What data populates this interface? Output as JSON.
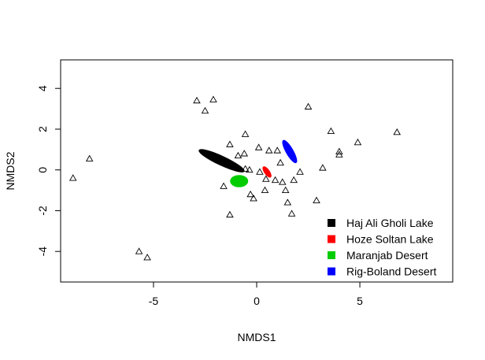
{
  "chart_data": {
    "type": "scatter",
    "title": "",
    "xlabel": "NMDS1",
    "ylabel": "NMDS2",
    "xlim": [
      -9.5,
      9.5
    ],
    "ylim": [
      -5.5,
      5.4
    ],
    "xticks": [
      -5,
      0,
      5
    ],
    "xtick_labels": [
      "-5",
      "0",
      "5"
    ],
    "yticks": [
      -4,
      -2,
      0,
      2,
      4
    ],
    "ytick_labels": [
      "-4",
      "-2",
      "0",
      "2",
      "4"
    ],
    "grid": false,
    "legend_position": "bottom-right",
    "point_marker": "open-triangle",
    "points": [
      [
        -8.9,
        -0.4
      ],
      [
        -8.1,
        0.55
      ],
      [
        -5.7,
        -4.0
      ],
      [
        -5.3,
        -4.3
      ],
      [
        -2.9,
        3.4
      ],
      [
        -2.5,
        2.9
      ],
      [
        -2.1,
        3.45
      ],
      [
        -1.6,
        -0.8
      ],
      [
        -1.3,
        1.25
      ],
      [
        -1.3,
        -2.2
      ],
      [
        -0.9,
        0.7
      ],
      [
        -0.6,
        0.8
      ],
      [
        -0.55,
        1.75
      ],
      [
        -0.55,
        0.05
      ],
      [
        -0.35,
        0.0
      ],
      [
        -0.3,
        -1.2
      ],
      [
        -0.15,
        -1.4
      ],
      [
        0.1,
        1.1
      ],
      [
        0.15,
        -0.1
      ],
      [
        0.4,
        -1.0
      ],
      [
        0.45,
        -0.45
      ],
      [
        0.6,
        0.95
      ],
      [
        0.9,
        -0.5
      ],
      [
        1.0,
        0.95
      ],
      [
        1.15,
        0.35
      ],
      [
        1.25,
        -0.6
      ],
      [
        1.4,
        -1.0
      ],
      [
        1.5,
        -1.6
      ],
      [
        1.7,
        -2.15
      ],
      [
        1.8,
        -0.5
      ],
      [
        2.1,
        -0.1
      ],
      [
        2.5,
        3.1
      ],
      [
        2.9,
        -1.5
      ],
      [
        3.2,
        0.1
      ],
      [
        3.6,
        1.9
      ],
      [
        4.0,
        0.9
      ],
      [
        4.0,
        0.75
      ],
      [
        4.9,
        1.35
      ],
      [
        6.8,
        1.85
      ]
    ],
    "series": [
      {
        "name": "Haj Ali Gholi Lake",
        "color": "#000000",
        "ellipse": {
          "center": [
            -1.7,
            0.45
          ],
          "rx": 1.2,
          "ry": 0.22,
          "angle_deg": -25
        }
      },
      {
        "name": "Hoze Soltan Lake",
        "color": "#ff0000",
        "ellipse": {
          "center": [
            0.5,
            -0.1
          ],
          "rx": 0.3,
          "ry": 0.12,
          "angle_deg": -55
        }
      },
      {
        "name": "Maranjab Desert",
        "color": "#00cc00",
        "ellipse": {
          "center": [
            -0.85,
            -0.55
          ],
          "rx": 0.42,
          "ry": 0.28,
          "angle_deg": 0
        }
      },
      {
        "name": "Rig-Boland Desert",
        "color": "#0000ff",
        "ellipse": {
          "center": [
            1.6,
            0.9
          ],
          "rx": 0.62,
          "ry": 0.17,
          "angle_deg": -60
        }
      }
    ]
  }
}
